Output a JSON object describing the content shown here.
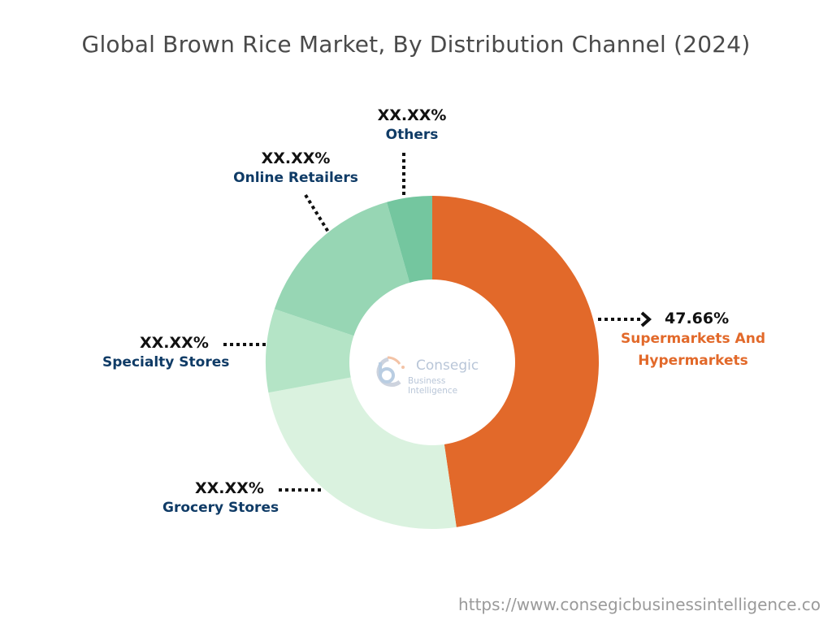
{
  "title": "Global Brown Rice Market, By Distribution Channel (2024)",
  "chart_data": {
    "type": "pie",
    "variant": "donut",
    "title": "Global Brown Rice Market, By Distribution Channel (2024)",
    "categories": [
      "Supermarkets And Hypermarkets",
      "Grocery Stores",
      "Specialty Stores",
      "Online Retailers",
      "Others"
    ],
    "values": [
      47.66,
      24.4,
      8.1,
      15.4,
      4.4
    ],
    "value_labels": [
      "47.66%",
      "XX.XX%",
      "XX.XX%",
      "XX.XX%",
      "XX.XX%"
    ],
    "colors": [
      "#e2692a",
      "#daf2df",
      "#b4e4c6",
      "#97d6b4",
      "#74c69f"
    ],
    "start_angle_deg": 0,
    "direction": "clockwise",
    "legend": "none (callout labels)",
    "note": "Only Supermarkets And Hypermarkets value is shown; other slice sizes estimated from geometry."
  },
  "labels": {
    "supermarkets": {
      "pct": "47.66%",
      "name_line1": "Supermarkets And",
      "name_line2": "Hypermarkets"
    },
    "grocery": {
      "pct": "XX.XX%",
      "name": "Grocery Stores"
    },
    "specialty": {
      "pct": "XX.XX%",
      "name": "Specialty Stores"
    },
    "online": {
      "pct": "XX.XX%",
      "name": "Online Retailers"
    },
    "others": {
      "pct": "XX.XX%",
      "name": "Others"
    }
  },
  "logo": {
    "brand": "Consegic",
    "tagline": "Business Intelligence"
  },
  "footer": {
    "url": "https://www.consegicbusinessintelligence.co"
  }
}
